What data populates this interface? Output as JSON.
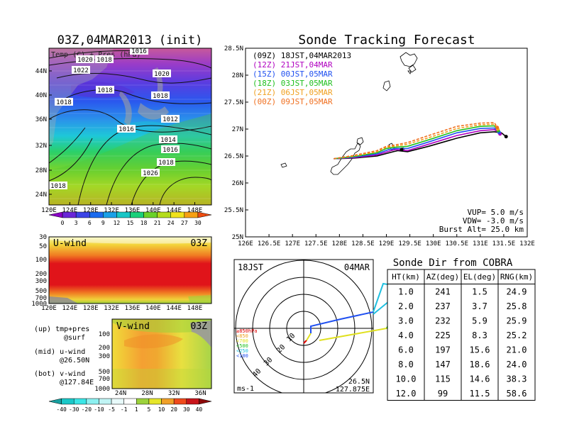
{
  "left": {
    "title": "03Z,04MAR2013 (init)",
    "sfc_label": "Temp (C) + Pres (hPa)",
    "lat_ticks": [
      "44N",
      "40N",
      "36N",
      "32N",
      "28N",
      "24N"
    ],
    "lon_ticks": [
      "120E",
      "124E",
      "128E",
      "132E",
      "136E",
      "140E",
      "144E",
      "148E"
    ],
    "isobars": [
      "1020",
      "1018",
      "1022",
      "1018",
      "1016",
      "1020",
      "1018",
      "1018",
      "1016",
      "1012",
      "1014",
      "1016",
      "1018",
      "1026",
      "1018"
    ],
    "temp_colorbar": [
      "0",
      "3",
      "6",
      "9",
      "12",
      "15",
      "18",
      "21",
      "24",
      "27",
      "30"
    ],
    "temp_colors": [
      "#8a00c6",
      "#6a26d8",
      "#3c44e6",
      "#1a6aef",
      "#1aa0e8",
      "#18c6c6",
      "#1ad07a",
      "#6ad228",
      "#b4dc1c",
      "#f0e21a",
      "#f7a012",
      "#ef4c10"
    ],
    "u_title": "U-wind",
    "u_time": "03Z",
    "u_y_ticks": [
      "30",
      "50",
      "100",
      "200",
      "300",
      "500",
      "700",
      "1000"
    ],
    "u_x_ticks": [
      "120E",
      "124E",
      "128E",
      "132E",
      "136E",
      "140E",
      "144E",
      "148E"
    ],
    "v_title": "V-wind",
    "v_time": "03Z",
    "v_y_ticks": [
      "100",
      "200",
      "300",
      "500",
      "700",
      "1000"
    ],
    "v_x_ticks": [
      "24N",
      "28N",
      "32N",
      "36N"
    ],
    "legend_lines": [
      "(up) tmp+pres",
      "@surf",
      "(mid) u-wind",
      "@26.50N",
      "(bot) v-wind",
      "@127.84E"
    ],
    "wind_colorbar": [
      "-40",
      "-30",
      "-20",
      "-10",
      "-5",
      "-1",
      "1",
      "5",
      "10",
      "20",
      "30",
      "40"
    ],
    "wind_colors": [
      "#18a0a0",
      "#1ac8c8",
      "#3ae6e6",
      "#8cf0f0",
      "#c0f4f4",
      "#e8fafa",
      "#ffffff",
      "#9cd23c",
      "#e6e62a",
      "#f0a028",
      "#f04a1c",
      "#c8141a",
      "#8c0a0a"
    ]
  },
  "main": {
    "title": "Sonde Tracking Forecast",
    "legend": [
      {
        "label": "(09Z)  18JST,04MAR2013",
        "color": "#000000"
      },
      {
        "label": "(12Z)  21JST,04MAR",
        "color": "#b000c0"
      },
      {
        "label": "(15Z)  00JST,05MAR",
        "color": "#2050f0"
      },
      {
        "label": "(18Z)  03JST,05MAR",
        "color": "#20c020"
      },
      {
        "label": "(21Z)  06JST,05MAR",
        "color": "#f0a020"
      },
      {
        "label": "(00Z)  09JST,05MAR",
        "color": "#f07020"
      }
    ],
    "params": [
      "VUP=  5.0  m/s",
      "VDW= -3.0  m/s",
      "Burst Alt=  25.0  km"
    ]
  },
  "polar": {
    "time": "18JST",
    "date": "04MAR",
    "unit": "ms-1",
    "loc_lat": "26.5N",
    "loc_lon": "127.875E",
    "ring_labels": [
      "10",
      "20",
      "30",
      "40"
    ],
    "levels": [
      {
        "label": "≥850hPa",
        "color": "#e00000"
      },
      {
        "label": "<850",
        "color": "#f0a020"
      },
      {
        "label": "<700",
        "color": "#e0e020"
      },
      {
        "label": "<500",
        "color": "#20c020"
      },
      {
        "label": "<250",
        "color": "#20c0e0"
      },
      {
        "label": "<100",
        "color": "#2050f0"
      }
    ]
  },
  "table": {
    "title": "Sonde Dir from COBRA",
    "headers": [
      "HT(km)",
      "AZ(deg)",
      "EL(deg)",
      "RNG(km)"
    ],
    "rows": [
      [
        "1.0",
        "241",
        "1.5",
        "24.9"
      ],
      [
        "2.0",
        "237",
        "3.7",
        "25.8"
      ],
      [
        "3.0",
        "232",
        "5.9",
        "25.9"
      ],
      [
        "4.0",
        "225",
        "8.3",
        "25.2"
      ],
      [
        "6.0",
        "197",
        "15.6",
        "21.0"
      ],
      [
        "8.0",
        "147",
        "18.6",
        "24.0"
      ],
      [
        "10.0",
        "115",
        "14.6",
        "38.3"
      ],
      [
        "12.0",
        "99",
        "11.5",
        "58.6"
      ]
    ]
  },
  "chart_data": [
    {
      "type": "line",
      "title": "Sonde Tracking Forecast",
      "xlabel": "",
      "ylabel": "",
      "x_ticks": [
        "126E",
        "126.5E",
        "127E",
        "127.5E",
        "128E",
        "128.5E",
        "129E",
        "129.5E",
        "130E",
        "130.5E",
        "131E",
        "131.5E",
        "132E"
      ],
      "y_ticks": [
        "25N",
        "25.5N",
        "26N",
        "26.5N",
        "27N",
        "27.5N",
        "28N",
        "28.5N"
      ],
      "xlim": [
        126,
        132
      ],
      "ylim": [
        25,
        28.5
      ],
      "series": [
        {
          "name": "(09Z) 18JST,04MAR2013",
          "color": "#000000",
          "dash": false,
          "x": [
            127.88,
            128.3,
            128.8,
            129.15,
            129.25,
            129.45,
            129.9,
            130.5,
            131.0,
            131.3,
            131.45,
            131.55
          ],
          "y": [
            26.45,
            26.46,
            26.5,
            26.58,
            26.6,
            26.58,
            26.68,
            26.83,
            26.93,
            26.95,
            26.93,
            26.86
          ]
        },
        {
          "name": "(12Z) 21JST,04MAR",
          "color": "#b000c0",
          "dash": false,
          "x": [
            127.88,
            128.3,
            128.8,
            129.1,
            129.2,
            129.45,
            129.9,
            130.5,
            131.0,
            131.3,
            131.42
          ],
          "y": [
            26.45,
            26.47,
            26.52,
            26.6,
            26.62,
            26.6,
            26.72,
            26.88,
            26.97,
            26.99,
            26.91
          ]
        },
        {
          "name": "(15Z) 00JST,05MAR",
          "color": "#2050f0",
          "dash": false,
          "x": [
            127.88,
            128.3,
            128.8,
            129.05,
            129.2,
            129.45,
            129.9,
            130.5,
            131.0,
            131.3,
            131.4
          ],
          "y": [
            26.45,
            26.48,
            26.54,
            26.62,
            26.64,
            26.64,
            26.76,
            26.93,
            27.01,
            27.02,
            26.94
          ]
        },
        {
          "name": "(18Z) 03JST,05MAR",
          "color": "#20c020",
          "dash": false,
          "x": [
            127.88,
            128.3,
            128.8,
            129.0,
            129.15,
            129.45,
            129.9,
            130.5,
            131.0,
            131.3,
            131.38
          ],
          "y": [
            26.45,
            26.49,
            26.56,
            26.64,
            26.66,
            26.68,
            26.8,
            26.97,
            27.05,
            27.06,
            26.97
          ]
        },
        {
          "name": "(21Z) 06JST,05MAR",
          "color": "#f0a020",
          "dash": true,
          "x": [
            127.88,
            128.3,
            128.8,
            129.0,
            129.15,
            129.45,
            129.9,
            130.5,
            131.0,
            131.3,
            131.37
          ],
          "y": [
            26.45,
            26.5,
            26.58,
            26.66,
            26.68,
            26.72,
            26.84,
            27.01,
            27.08,
            27.09,
            27.0
          ]
        },
        {
          "name": "(00Z) 09JST,05MAR",
          "color": "#f07020",
          "dash": true,
          "x": [
            127.88,
            128.3,
            128.8,
            129.0,
            129.15,
            129.45,
            129.9,
            130.5,
            131.0,
            131.3,
            131.36
          ],
          "y": [
            26.45,
            26.51,
            26.6,
            26.68,
            26.7,
            26.75,
            26.88,
            27.05,
            27.11,
            27.12,
            27.03
          ]
        }
      ]
    },
    {
      "type": "table",
      "title": "Sonde Dir from COBRA",
      "columns": [
        "HT(km)",
        "AZ(deg)",
        "EL(deg)",
        "RNG(km)"
      ],
      "rows": [
        [
          1.0,
          241,
          1.5,
          24.9
        ],
        [
          2.0,
          237,
          3.7,
          25.8
        ],
        [
          3.0,
          232,
          5.9,
          25.9
        ],
        [
          4.0,
          225,
          8.3,
          25.2
        ],
        [
          6.0,
          197,
          15.6,
          21.0
        ],
        [
          8.0,
          147,
          18.6,
          24.0
        ],
        [
          10.0,
          115,
          14.6,
          38.3
        ],
        [
          12.0,
          99,
          11.5,
          58.6
        ]
      ]
    }
  ]
}
